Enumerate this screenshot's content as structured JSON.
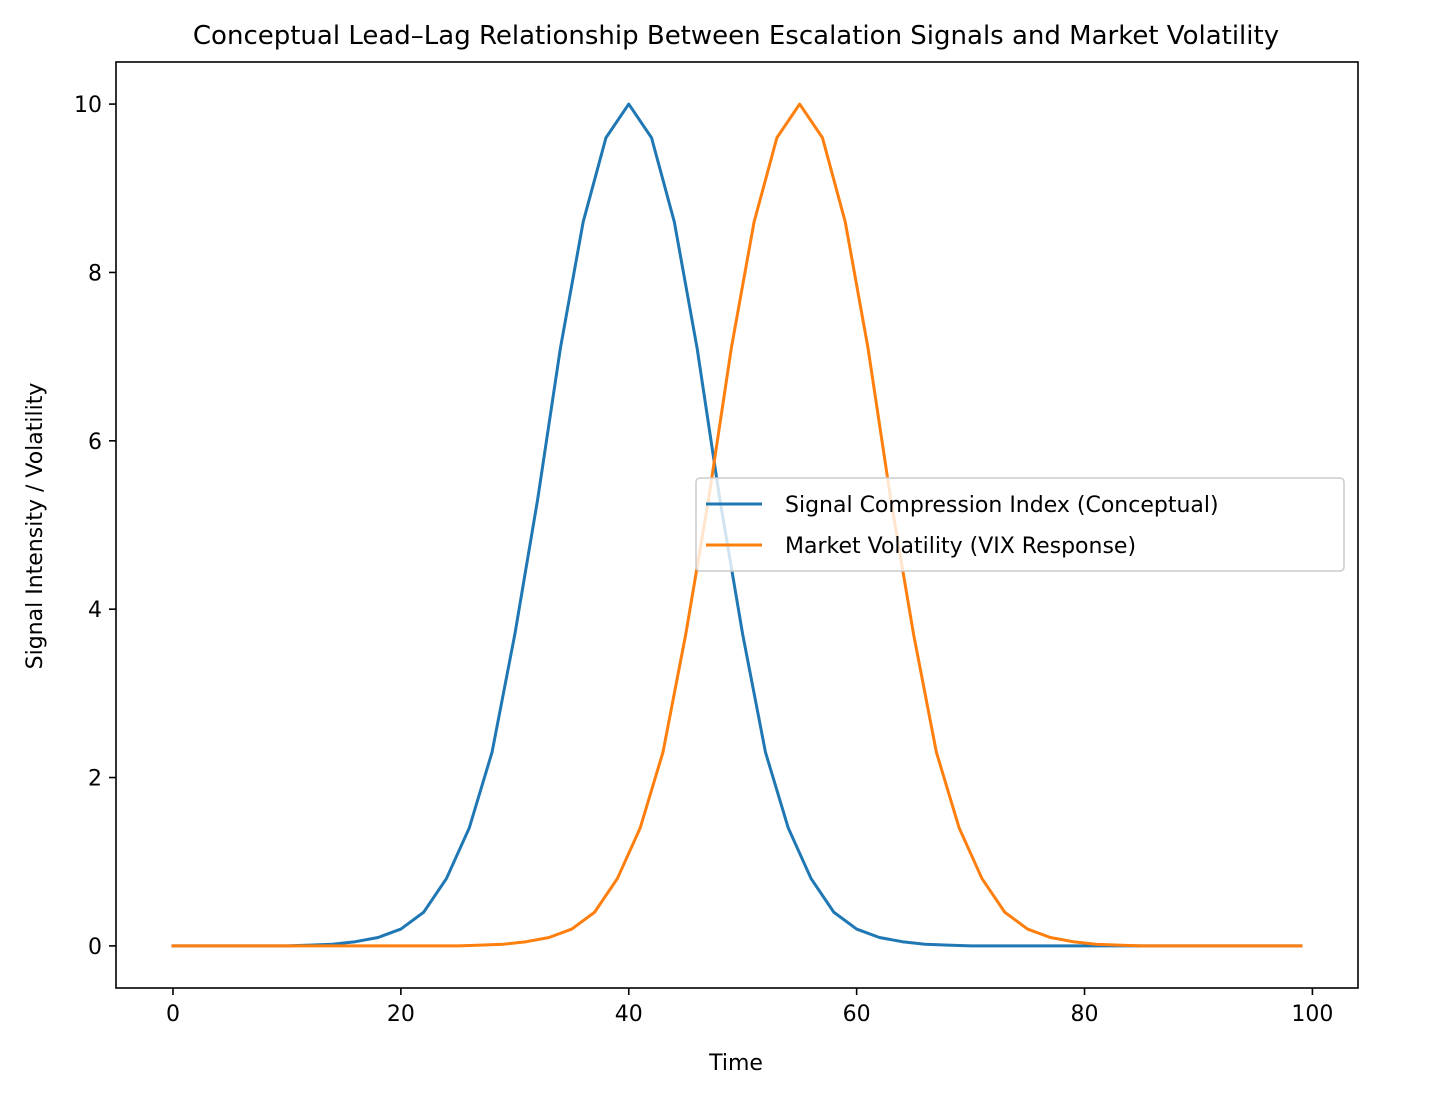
{
  "chart_data": {
    "type": "line",
    "title": "Conceptual Lead–Lag Relationship Between Escalation Signals and Market Volatility",
    "xlabel": "Time",
    "ylabel": "Signal Intensity / Volatility",
    "xlim": [
      -5,
      104
    ],
    "ylim": [
      -0.5,
      10.5
    ],
    "xticks": [
      0,
      20,
      40,
      60,
      80,
      100
    ],
    "yticks": [
      0,
      2,
      4,
      6,
      8,
      10
    ],
    "grid": false,
    "legend_position": "center-right",
    "series": [
      {
        "name": "Signal Compression Index (Conceptual)",
        "color": "#1f77b4",
        "x": [
          0,
          5,
          10,
          12,
          14,
          16,
          18,
          20,
          22,
          24,
          26,
          28,
          30,
          32,
          34,
          36,
          38,
          40,
          42,
          44,
          46,
          48,
          50,
          52,
          54,
          56,
          58,
          60,
          62,
          64,
          66,
          68,
          70,
          75,
          80,
          85,
          90,
          95,
          99
        ],
        "y": [
          0.0,
          0.0,
          0.0,
          0.01,
          0.02,
          0.05,
          0.1,
          0.2,
          0.4,
          0.8,
          1.4,
          2.3,
          3.7,
          5.3,
          7.1,
          8.6,
          9.6,
          10.0,
          9.6,
          8.6,
          7.1,
          5.3,
          3.7,
          2.3,
          1.4,
          0.8,
          0.4,
          0.2,
          0.1,
          0.05,
          0.02,
          0.01,
          0.0,
          0.0,
          0.0,
          0.0,
          0.0,
          0.0,
          0.0
        ]
      },
      {
        "name": "Market Volatility (VIX Response)",
        "color": "#ff7f0e",
        "x": [
          0,
          10,
          20,
          25,
          27,
          29,
          31,
          33,
          35,
          37,
          39,
          41,
          43,
          45,
          47,
          49,
          51,
          53,
          55,
          57,
          59,
          61,
          63,
          65,
          67,
          69,
          71,
          73,
          75,
          77,
          79,
          81,
          83,
          85,
          90,
          95,
          99
        ],
        "y": [
          0.0,
          0.0,
          0.0,
          0.0,
          0.01,
          0.02,
          0.05,
          0.1,
          0.2,
          0.4,
          0.8,
          1.4,
          2.3,
          3.7,
          5.3,
          7.1,
          8.6,
          9.6,
          10.0,
          9.6,
          8.6,
          7.1,
          5.3,
          3.7,
          2.3,
          1.4,
          0.8,
          0.4,
          0.2,
          0.1,
          0.05,
          0.02,
          0.01,
          0.0,
          0.0,
          0.0,
          0.0
        ]
      }
    ]
  }
}
